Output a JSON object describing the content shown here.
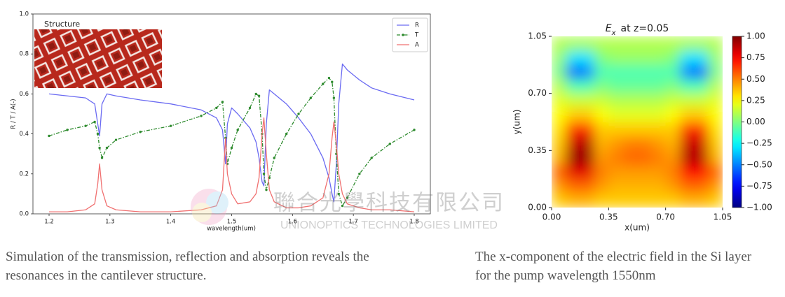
{
  "chart_data": [
    {
      "type": "line",
      "ylabel": "R / T / A(-)",
      "xlabel": "wavelength(um)",
      "inset_label": "Structure",
      "x": [
        1.2,
        1.23,
        1.26,
        1.275,
        1.28,
        1.283,
        1.287,
        1.295,
        1.31,
        1.35,
        1.4,
        1.45,
        1.475,
        1.485,
        1.49,
        1.493,
        1.5,
        1.51,
        1.53,
        1.54,
        1.545,
        1.55,
        1.553,
        1.557,
        1.562,
        1.57,
        1.59,
        1.61,
        1.63,
        1.65,
        1.66,
        1.665,
        1.668,
        1.672,
        1.676,
        1.682,
        1.69,
        1.71,
        1.73,
        1.76,
        1.8
      ],
      "xlim": [
        1.1735,
        1.8265
      ],
      "xticks": [
        1.2,
        1.3,
        1.4,
        1.5,
        1.6,
        1.7,
        1.8
      ],
      "ylim": [
        0,
        1
      ],
      "yticks": [
        {
          "value": 0,
          "label": "0.0"
        },
        0.2,
        0.4,
        0.6,
        0.8,
        {
          "value": 1,
          "label": "1.0"
        }
      ],
      "legend": "upper right",
      "grid": false,
      "series": [
        {
          "name": "R",
          "color": "#6a6af2",
          "values": [
            0.6,
            0.59,
            0.58,
            0.55,
            0.45,
            0.39,
            0.55,
            0.6,
            0.59,
            0.57,
            0.55,
            0.52,
            0.48,
            0.42,
            0.25,
            0.45,
            0.53,
            0.5,
            0.43,
            0.36,
            0.28,
            0.16,
            0.14,
            0.45,
            0.62,
            0.6,
            0.55,
            0.48,
            0.4,
            0.28,
            0.18,
            0.1,
            0.06,
            0.25,
            0.55,
            0.75,
            0.72,
            0.67,
            0.63,
            0.6,
            0.57
          ]
        },
        {
          "name": "T",
          "color": "#2e8b2e",
          "linestyle": "-.",
          "marker": ".",
          "values": [
            0.39,
            0.42,
            0.44,
            0.46,
            0.4,
            0.33,
            0.28,
            0.33,
            0.37,
            0.41,
            0.44,
            0.49,
            0.53,
            0.56,
            0.38,
            0.25,
            0.33,
            0.42,
            0.53,
            0.6,
            0.59,
            0.4,
            0.2,
            0.12,
            0.18,
            0.28,
            0.4,
            0.5,
            0.58,
            0.65,
            0.68,
            0.66,
            0.58,
            0.3,
            0.1,
            0.04,
            0.08,
            0.2,
            0.28,
            0.35,
            0.42
          ]
        },
        {
          "name": "A",
          "color": "#f07070",
          "values": [
            0.01,
            0.01,
            0.02,
            0.05,
            0.15,
            0.25,
            0.12,
            0.04,
            0.02,
            0.01,
            0.01,
            0.02,
            0.04,
            0.12,
            0.38,
            0.2,
            0.1,
            0.05,
            0.06,
            0.1,
            0.18,
            0.4,
            0.48,
            0.3,
            0.12,
            0.06,
            0.03,
            0.03,
            0.04,
            0.08,
            0.2,
            0.38,
            0.46,
            0.35,
            0.2,
            0.1,
            0.05,
            0.03,
            0.02,
            0.02,
            0.01
          ]
        }
      ]
    },
    {
      "type": "heatmap",
      "title_symbol": "E",
      "title_subscript": "x",
      "title": "at z=0.05",
      "xlabel": "x(um)",
      "ylabel": "y(um)",
      "xlim": [
        0,
        1.05
      ],
      "ylim": [
        0,
        1.05
      ],
      "xticks": [
        {
          "value": 0,
          "label": "0.00"
        },
        {
          "value": 0.35,
          "label": "0.35"
        },
        {
          "value": 0.7,
          "label": "0.70"
        },
        {
          "value": 1.05,
          "label": "1.05"
        }
      ],
      "yticks": [
        {
          "value": 0,
          "label": "0.00"
        },
        {
          "value": 0.35,
          "label": "0.35"
        },
        {
          "value": 0.7,
          "label": "0.70"
        },
        {
          "value": 1.05,
          "label": "1.05"
        }
      ],
      "colormap": "jet",
      "clim": [
        -1,
        1
      ],
      "origin": "upper",
      "cticks": [
        {
          "value": 1,
          "label": "1.00"
        },
        {
          "value": 0.75,
          "label": "0.75"
        },
        {
          "value": 0.5,
          "label": "0.50"
        },
        {
          "value": 0.25,
          "label": "0.25"
        },
        {
          "value": 0,
          "label": "0.00"
        },
        {
          "value": -0.25,
          "label": "−0.25"
        },
        {
          "value": -0.5,
          "label": "−0.50"
        },
        {
          "value": -0.75,
          "label": "−0.75"
        },
        {
          "value": -1,
          "label": "−1.00"
        }
      ],
      "z": [
        [
          0.1,
          0.08,
          0.08,
          0.1,
          0.1,
          0.1,
          0.1,
          0.1,
          0.1,
          0.08,
          0.08,
          0.1
        ],
        [
          0.05,
          -0.3,
          -0.3,
          0.0,
          0.05,
          0.05,
          0.05,
          0.05,
          0.0,
          -0.3,
          -0.3,
          0.05
        ],
        [
          0.0,
          -0.55,
          -0.5,
          -0.1,
          -0.1,
          -0.1,
          -0.1,
          -0.1,
          -0.1,
          -0.5,
          -0.55,
          0.0
        ],
        [
          0.1,
          -0.1,
          -0.1,
          0.0,
          -0.05,
          -0.05,
          -0.05,
          -0.05,
          0.0,
          -0.1,
          -0.1,
          0.1
        ],
        [
          0.2,
          0.15,
          0.15,
          0.15,
          0.1,
          0.1,
          0.1,
          0.1,
          0.15,
          0.15,
          0.15,
          0.2
        ],
        [
          0.25,
          0.35,
          0.35,
          0.25,
          0.2,
          0.2,
          0.2,
          0.2,
          0.25,
          0.35,
          0.35,
          0.25
        ],
        [
          0.3,
          0.65,
          0.65,
          0.35,
          0.35,
          0.35,
          0.35,
          0.35,
          0.35,
          0.65,
          0.65,
          0.3
        ],
        [
          0.35,
          0.85,
          0.9,
          0.4,
          0.45,
          0.5,
          0.5,
          0.45,
          0.4,
          0.85,
          0.85,
          0.35
        ],
        [
          0.4,
          0.95,
          0.95,
          0.45,
          0.5,
          0.55,
          0.55,
          0.5,
          0.45,
          0.9,
          0.9,
          0.4
        ],
        [
          0.55,
          0.8,
          0.8,
          0.5,
          0.45,
          0.45,
          0.45,
          0.45,
          0.5,
          0.75,
          0.75,
          0.55
        ],
        [
          0.45,
          0.55,
          0.55,
          0.45,
          0.4,
          0.4,
          0.4,
          0.4,
          0.45,
          0.55,
          0.55,
          0.45
        ],
        [
          0.35,
          0.4,
          0.4,
          0.35,
          0.35,
          0.35,
          0.35,
          0.35,
          0.35,
          0.4,
          0.4,
          0.35
        ]
      ]
    }
  ],
  "captions": [
    "Simulation of the transmission, reflection and absorption reveals the resonances in the cantilever structure.",
    "The x-component of the electric field in the Si layer for the pump wavelength 1550nm"
  ],
  "watermark": {
    "chinese": "聯合光學科技有限公司",
    "english": "UNIONOPTICS TECHNOLOGIES LIMITED"
  }
}
